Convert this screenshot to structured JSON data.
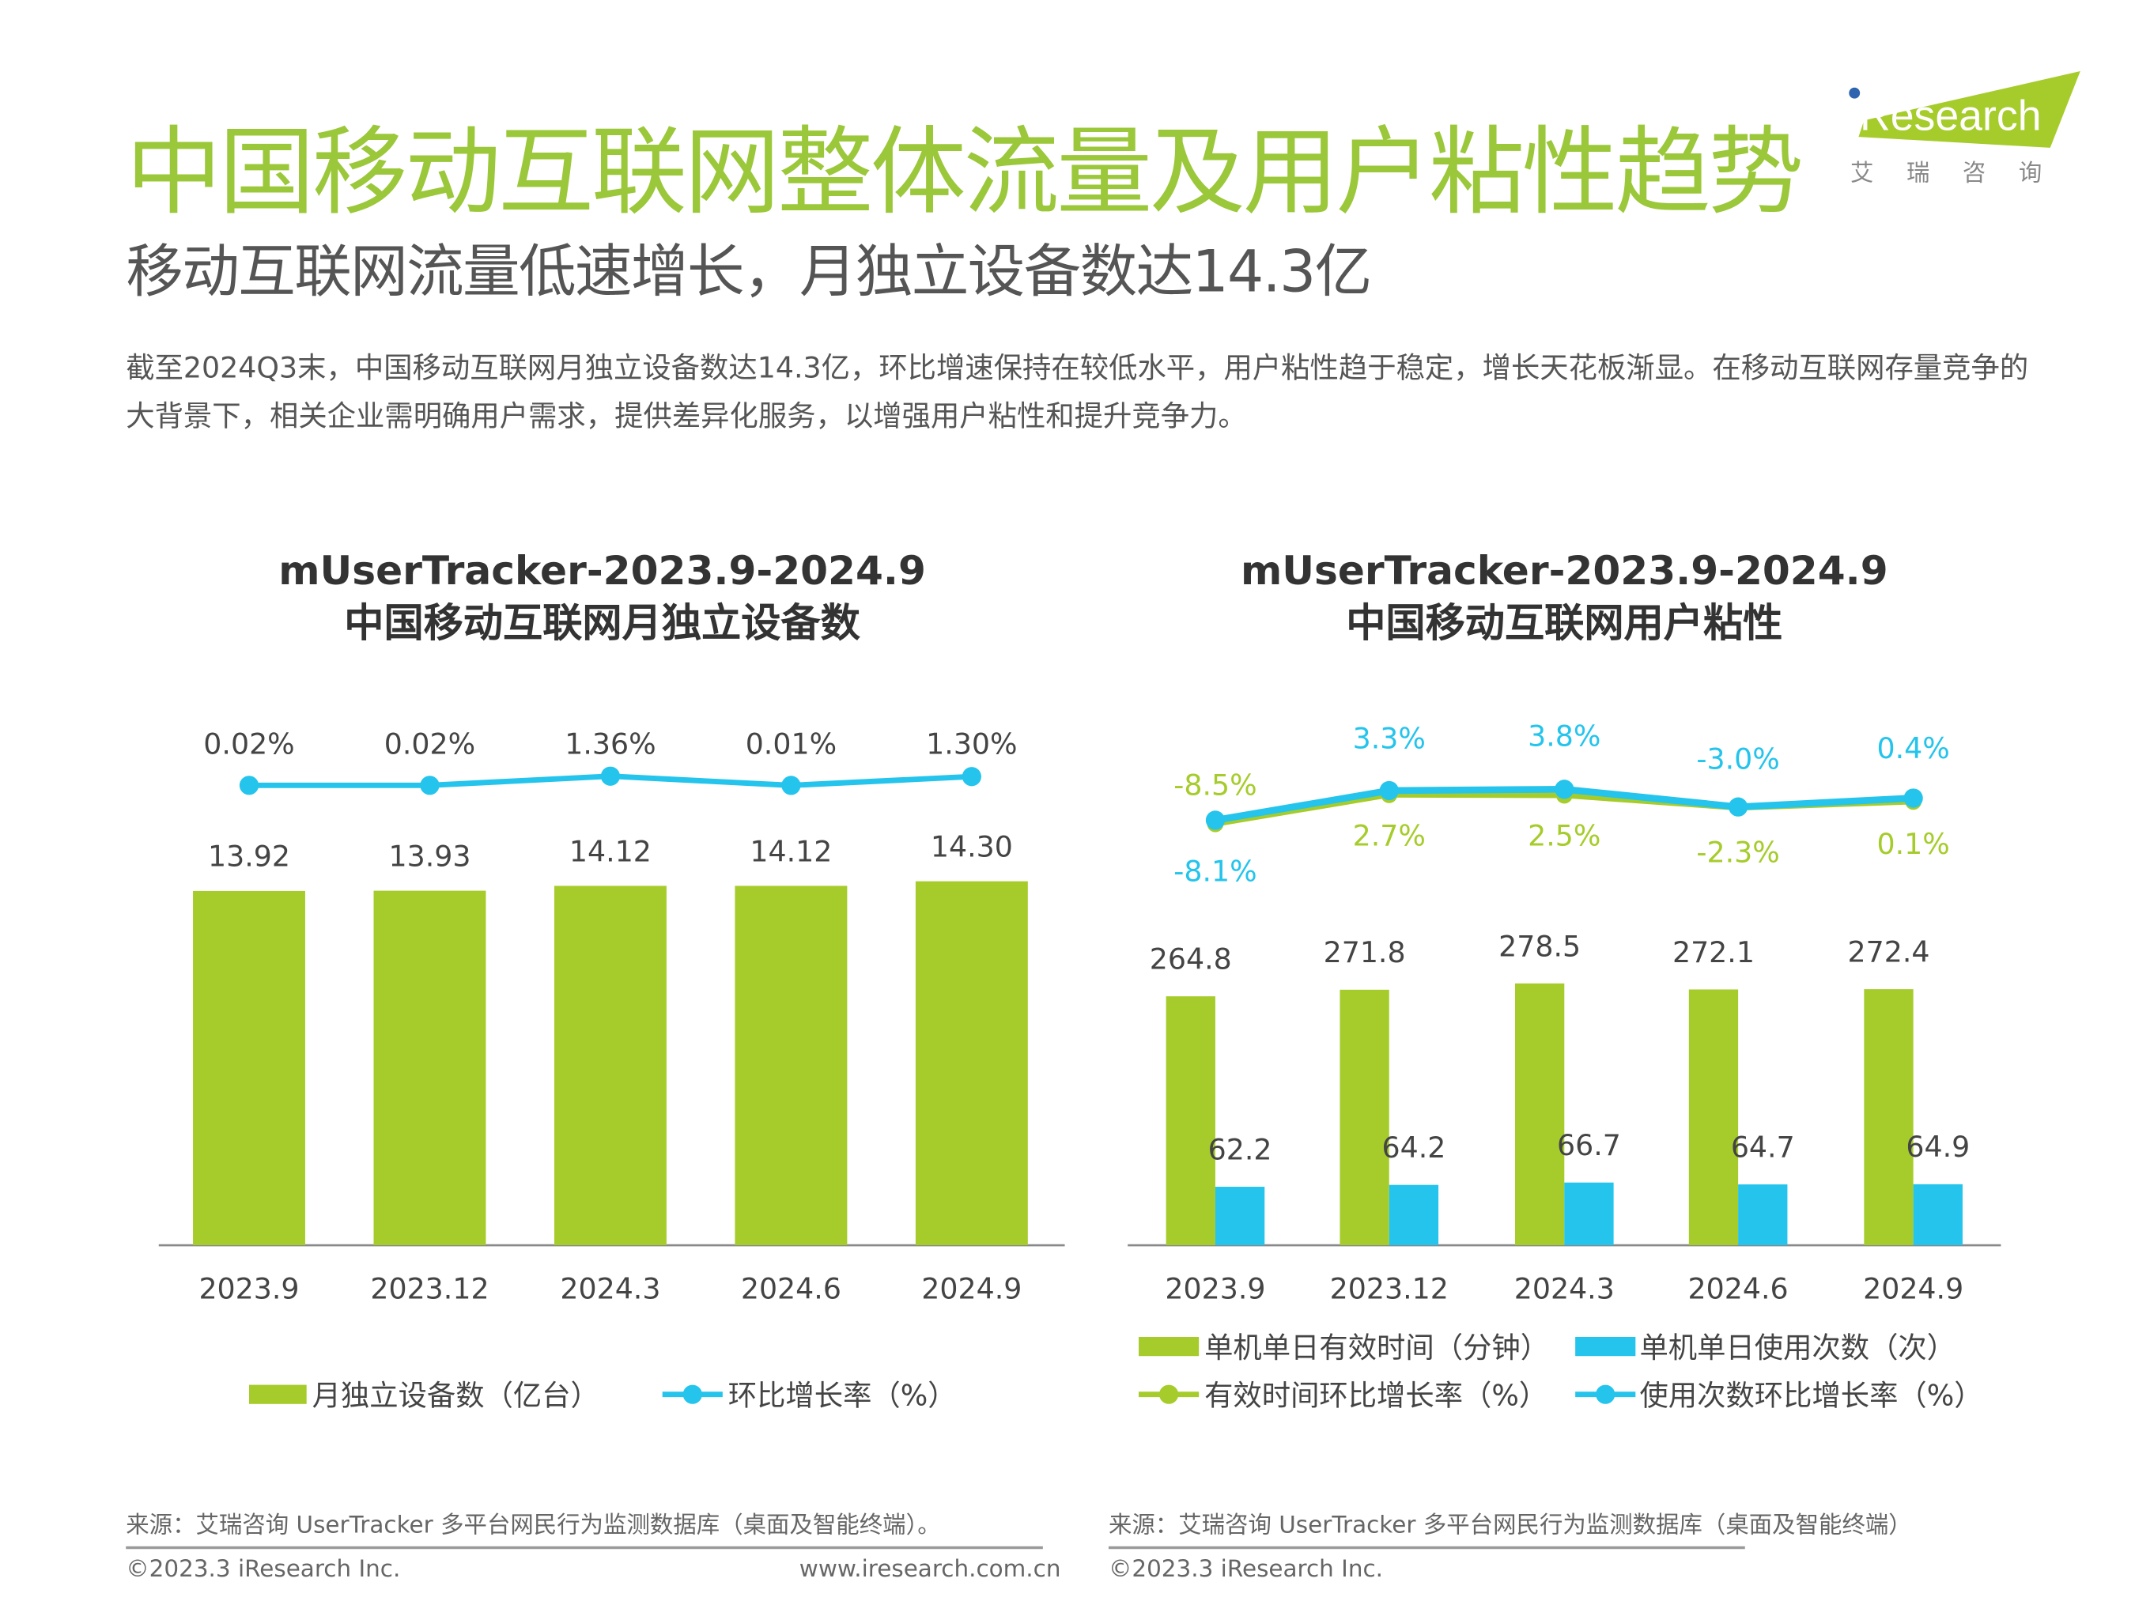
{
  "header": {
    "title": "中国移动互联网整体流量及用户粘性趋势",
    "subtitle": "移动互联网流量低速增长，月独立设备数达14.3亿",
    "description": "截至2024Q3末，中国移动互联网月独立设备数达14.3亿，环比增速保持在较低水平，用户粘性趋于稳定，增长天花板渐显。在移动互联网存量竞争的大背景下，相关企业需明确用户需求，提供差异化服务，以增强用户粘性和提升竞争力。"
  },
  "logo": {
    "text": "iResearch",
    "cn": "艾 瑞 咨 询",
    "colors": {
      "green": "#a6cc2c",
      "blue": "#2e63b0"
    }
  },
  "colors": {
    "green": "#a6cc2c",
    "cyan": "#24c4ec",
    "text": "#444444"
  },
  "chart_data": [
    {
      "type": "bar+line",
      "title": "mUserTracker-2023.9-2024.9",
      "subtitle": "中国移动互联网月独立设备数",
      "categories": [
        "2023.9",
        "2023.12",
        "2024.3",
        "2024.6",
        "2024.9"
      ],
      "series": [
        {
          "name": "月独立设备数（亿台）",
          "type": "bar",
          "color": "#a6cc2c",
          "values": [
            13.92,
            13.93,
            14.12,
            14.12,
            14.3
          ],
          "labels": [
            "13.92",
            "13.93",
            "14.12",
            "14.12",
            "14.30"
          ]
        },
        {
          "name": "环比增长率（%）",
          "type": "line",
          "color": "#24c4ec",
          "values": [
            0.02,
            0.02,
            1.36,
            0.01,
            1.3
          ],
          "labels": [
            "0.02%",
            "0.02%",
            "1.36%",
            "0.01%",
            "1.30%"
          ]
        }
      ],
      "legend": "bottom",
      "grid": false
    },
    {
      "type": "bar+line",
      "title": "mUserTracker-2023.9-2024.9",
      "subtitle": "中国移动互联网用户粘性",
      "categories": [
        "2023.9",
        "2023.12",
        "2024.3",
        "2024.6",
        "2024.9"
      ],
      "series": [
        {
          "name": "单机单日有效时间（分钟）",
          "type": "bar",
          "color": "#a6cc2c",
          "values": [
            264.8,
            271.8,
            278.5,
            272.1,
            272.4
          ],
          "labels": [
            "264.8",
            "271.8",
            "278.5",
            "272.1",
            "272.4"
          ]
        },
        {
          "name": "单机单日使用次数（次）",
          "type": "bar",
          "color": "#24c4ec",
          "values": [
            62.2,
            64.2,
            66.7,
            64.7,
            64.9
          ],
          "labels": [
            "62.2",
            "64.2",
            "66.7",
            "64.7",
            "64.9"
          ]
        },
        {
          "name": "有效时间环比增长率（%）",
          "type": "line",
          "color": "#a6cc2c",
          "values": [
            -8.5,
            2.7,
            2.5,
            -2.3,
            0.1
          ],
          "labels": [
            "-8.5%",
            "2.7%",
            "2.5%",
            "-2.3%",
            "0.1%"
          ]
        },
        {
          "name": "使用次数环比增长率（%）",
          "type": "line",
          "color": "#24c4ec",
          "values": [
            -8.1,
            3.3,
            3.8,
            -3.0,
            0.4
          ],
          "labels": [
            "-8.1%",
            "3.3%",
            "3.8%",
            "-3.0%",
            "0.4%"
          ]
        }
      ],
      "legend": "bottom",
      "grid": false
    }
  ],
  "footer": {
    "left": {
      "source": "来源：艾瑞咨询 UserTracker 多平台网民行为监测数据库（桌面及智能终端）。",
      "copyright": "©2023.3 iResearch Inc.",
      "url": "www.iresearch.com.cn"
    },
    "right": {
      "source": "来源：艾瑞咨询 UserTracker 多平台网民行为监测数据库（桌面及智能终端）",
      "copyright": "©2023.3 iResearch Inc."
    }
  }
}
